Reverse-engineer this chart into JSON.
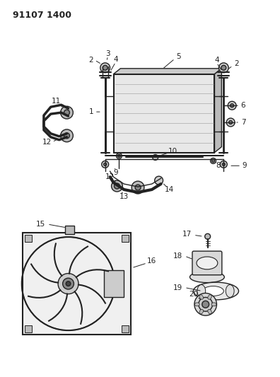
{
  "title": "91107 1400",
  "background_color": "#ffffff",
  "figure_size": [
    3.96,
    5.33
  ],
  "dpi": 100,
  "line_color": "#222222",
  "gray_fill": "#bbbbbb",
  "light_gray": "#dddddd",
  "dark_gray": "#888888"
}
